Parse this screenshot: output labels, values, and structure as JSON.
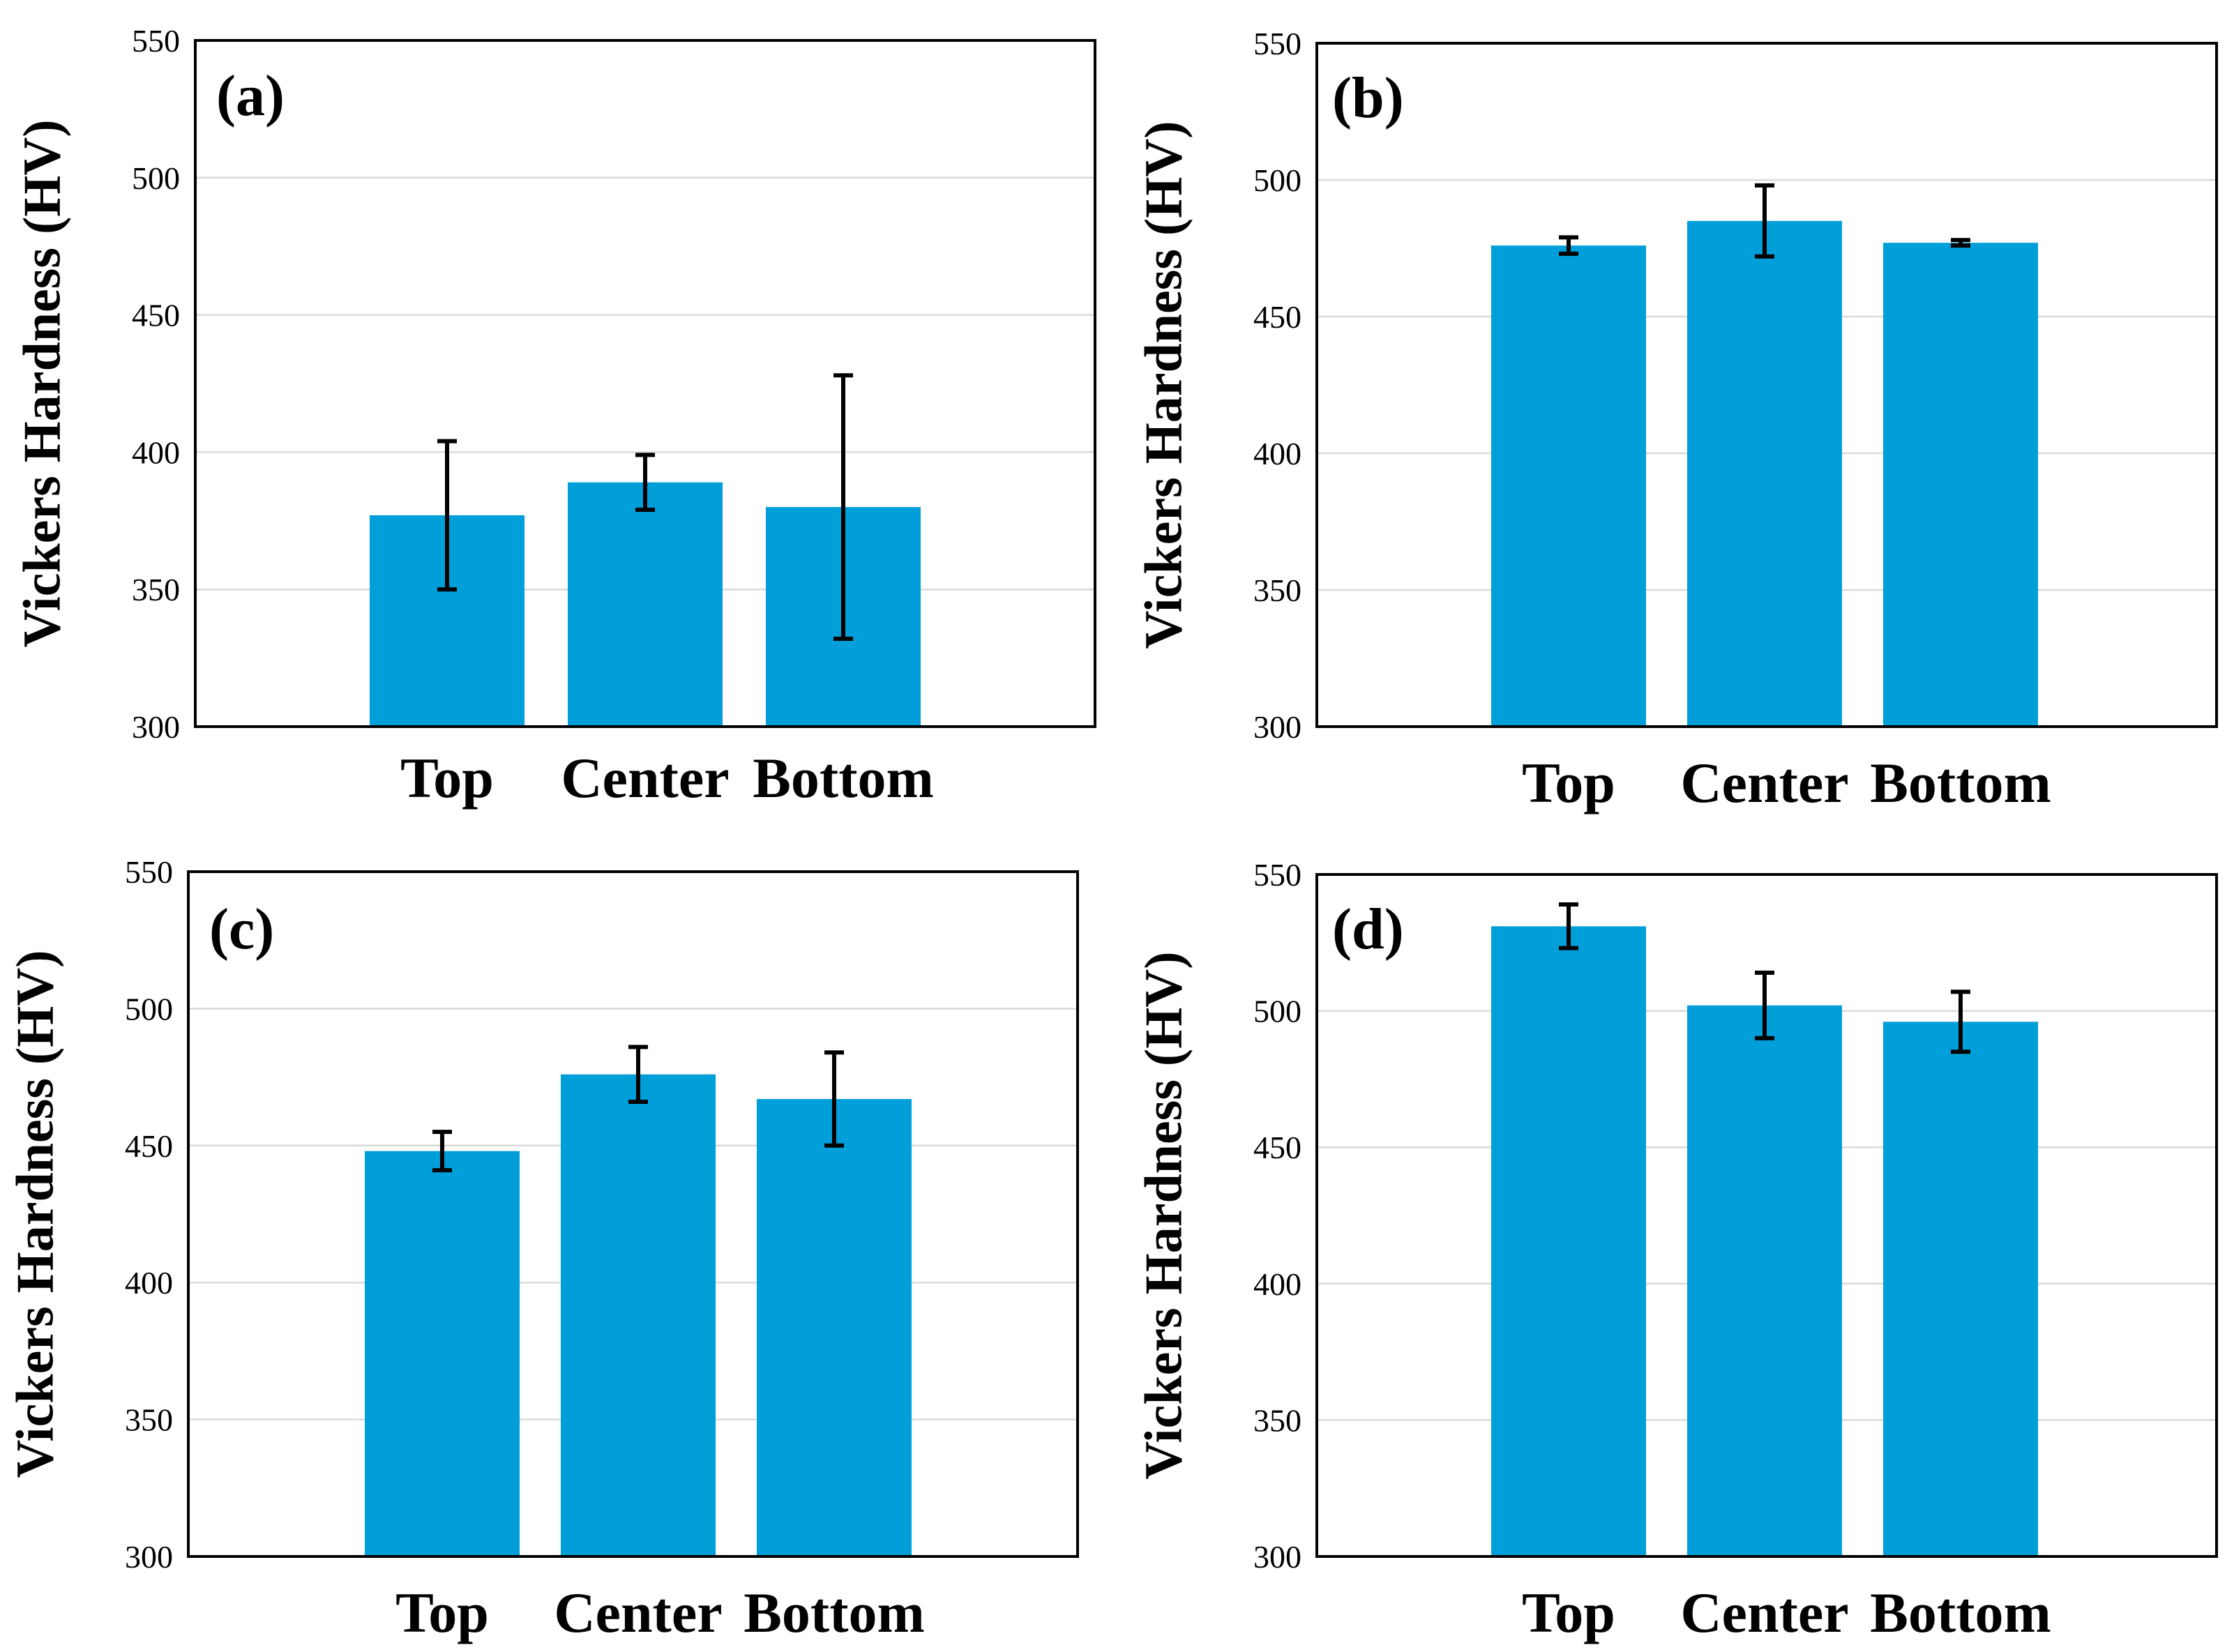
{
  "figure": {
    "bar_color": "#009fd9",
    "error_color": "#000000",
    "grid_color": "#d9d9d9"
  },
  "chart_data": [
    {
      "type": "bar",
      "panel": "(a)",
      "title": "",
      "xlabel": "",
      "ylabel": "Vickers Hardness (HV)",
      "categories": [
        "Top",
        "Center",
        "Bottom"
      ],
      "values": [
        377,
        389,
        380
      ],
      "errors": [
        27,
        10,
        48
      ],
      "ylim": [
        300,
        550
      ],
      "yticks": [
        "300",
        "350",
        "400",
        "450",
        "500",
        "550"
      ],
      "grid": true
    },
    {
      "type": "bar",
      "panel": "(b)",
      "title": "",
      "xlabel": "",
      "ylabel": "Vickers Hardness (HV)",
      "categories": [
        "Top",
        "Center",
        "Bottom"
      ],
      "values": [
        476,
        485,
        477
      ],
      "errors": [
        3,
        13,
        1
      ],
      "ylim": [
        300,
        550
      ],
      "yticks": [
        "300",
        "350",
        "400",
        "450",
        "500",
        "550"
      ],
      "grid": true
    },
    {
      "type": "bar",
      "panel": "(c)",
      "title": "",
      "xlabel": "",
      "ylabel": "Vickers Hardness (HV)",
      "categories": [
        "Top",
        "Center",
        "Bottom"
      ],
      "values": [
        448,
        476,
        467
      ],
      "errors": [
        7,
        10,
        17
      ],
      "ylim": [
        300,
        550
      ],
      "yticks": [
        "300",
        "350",
        "400",
        "450",
        "500",
        "550"
      ],
      "grid": true
    },
    {
      "type": "bar",
      "panel": "(d)",
      "title": "",
      "xlabel": "",
      "ylabel": "Vickers Hardness (HV)",
      "categories": [
        "Top",
        "Center",
        "Bottom"
      ],
      "values": [
        531,
        502,
        496
      ],
      "errors": [
        8,
        12,
        11
      ],
      "ylim": [
        300,
        550
      ],
      "yticks": [
        "300",
        "350",
        "400",
        "450",
        "500",
        "550"
      ],
      "grid": true
    }
  ]
}
